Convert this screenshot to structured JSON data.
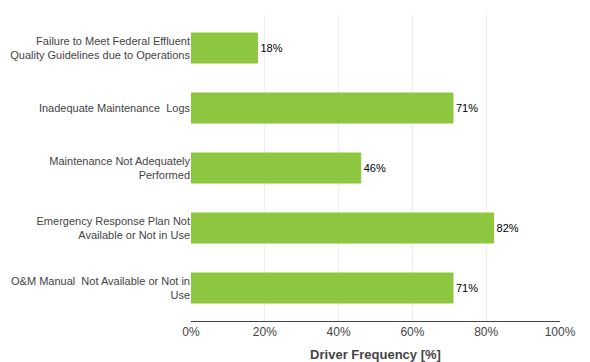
{
  "chart_data": {
    "type": "bar",
    "orientation": "horizontal",
    "categories": [
      "O&M Manual  Not Available or Not in\nUse",
      "Emergency Response Plan Not\nAvailable or Not in Use",
      "Maintenance Not Adequately\nPerformed",
      "Inadequate Maintenance  Logs",
      "Failure to Meet Federal Effluent\nQuality Guidelines due to Operations"
    ],
    "values": [
      71,
      82,
      46,
      71,
      18
    ],
    "value_labels": [
      "71%",
      "82%",
      "46%",
      "71%",
      "18%"
    ],
    "data_labels": true,
    "color": "#8DC63F",
    "xlabel": "Driver Frequency [%]",
    "xlim": [
      0,
      100
    ],
    "xticks": [
      {
        "value": 0,
        "label": "0%"
      },
      {
        "value": 20,
        "label": "20%"
      },
      {
        "value": 40,
        "label": "40%"
      },
      {
        "value": 60,
        "label": "60%"
      },
      {
        "value": 80,
        "label": "80%"
      },
      {
        "value": 100,
        "label": "100%"
      }
    ],
    "grid": true
  }
}
